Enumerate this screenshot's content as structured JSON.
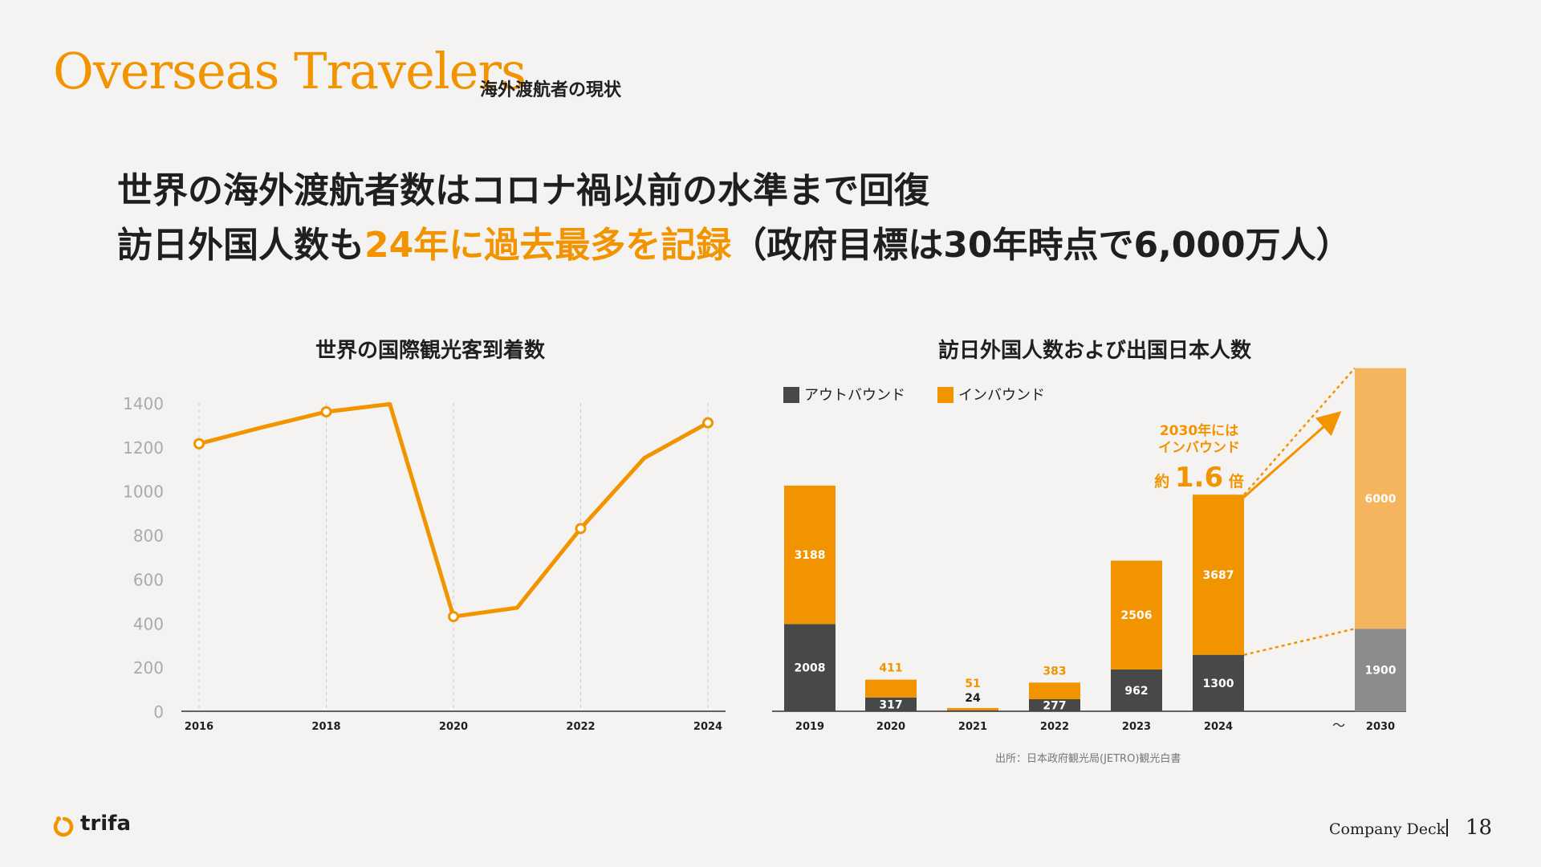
{
  "header": {
    "title_en": "Overseas Travelers",
    "title_jp": "海外渡航者の現状"
  },
  "headline": {
    "line1": "世界の海外渡航者数はコロナ禍以前の水準まで回復",
    "line2_a": "訪日外国人数も",
    "line2_highlight": "24年に過去最多を記録",
    "line2_b": "（政府目標は30年時点で6,000万人）"
  },
  "colors": {
    "accent": "#f29400",
    "dark": "#484848",
    "projection_light": "#f5b55f",
    "projection_dark": "#8c8c8c"
  },
  "chart_data": [
    {
      "type": "line",
      "title": "世界の国際観光客到着数",
      "xlabel": "",
      "ylabel": "",
      "x": [
        2016,
        2017,
        2018,
        2019,
        2020,
        2021,
        2022,
        2023,
        2024
      ],
      "x_tick_labels": [
        "2016",
        "2018",
        "2020",
        "2022",
        "2024"
      ],
      "y_tick_labels": [
        "0",
        "200",
        "400",
        "600",
        "800",
        "1000",
        "1200",
        "1400"
      ],
      "series": [
        {
          "values": [
            1215,
            1290,
            1360,
            1395,
            430,
            470,
            830,
            1150,
            1310
          ],
          "markers_at": [
            2016,
            2018,
            2020,
            2022,
            2024
          ]
        }
      ],
      "ylim": [
        0,
        1400
      ],
      "xlim": [
        2016,
        2024
      ],
      "grid": "vertical dashed at labeled years",
      "legend": "none"
    },
    {
      "type": "bar",
      "stacked": true,
      "title": "訪日外国人数および出国日本人数",
      "categories": [
        "2019",
        "2020",
        "2021",
        "2022",
        "2023",
        "2024",
        "2030"
      ],
      "gap_marker": "〜",
      "series": [
        {
          "name": "アウトバウンド",
          "values": [
            2008,
            317,
            24,
            277,
            962,
            1300,
            1900
          ]
        },
        {
          "name": "インバウンド",
          "values": [
            3188,
            411,
            51,
            383,
            2506,
            3687,
            6000
          ]
        }
      ],
      "ylim": [
        0,
        8000
      ],
      "legend": "top-left",
      "annotation": {
        "line1": "2030年には",
        "line2": "インバウンド",
        "prefix": "約",
        "multiplier": "1.6",
        "suffix": "倍"
      },
      "source": "出所：日本政府観光局(JETRO)観光白書"
    }
  ],
  "footer": {
    "logo_text": "trifa",
    "deck_label": "Company Deck",
    "page_number": "18"
  }
}
